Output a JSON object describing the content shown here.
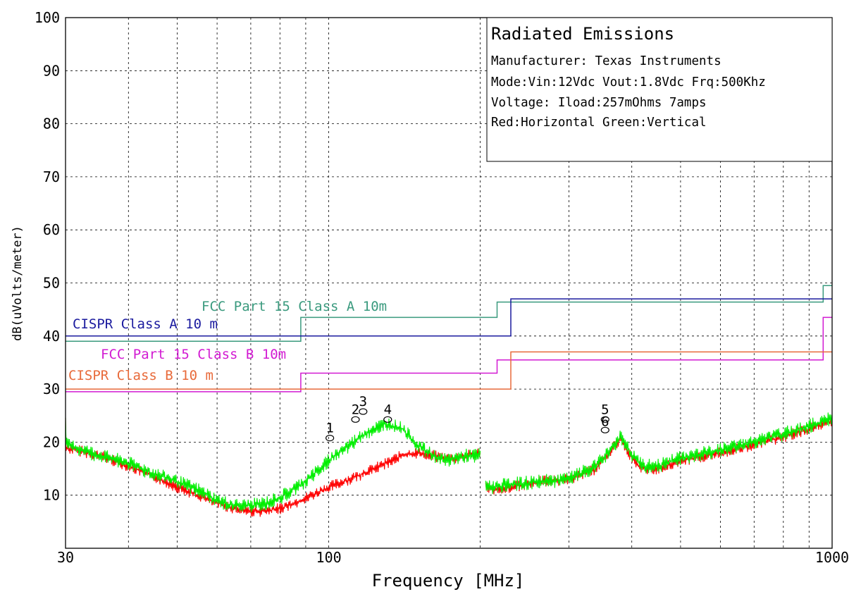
{
  "chart_data": {
    "type": "line",
    "title": "Radiated Emissions",
    "info_lines": [
      "Manufacturer: Texas Instruments",
      "Mode:Vin:12Vdc Vout:1.8Vdc Frq:500Khz",
      "Voltage: Iload:257mOhms 7amps",
      "Red:Horizontal Green:Vertical"
    ],
    "xlabel": "Frequency [MHz]",
    "ylabel": "dB(uVolts/meter)",
    "x_scale": "log",
    "xlim": [
      30,
      1000
    ],
    "ylim": [
      0,
      100
    ],
    "x_ticks": [
      30,
      100,
      1000
    ],
    "y_ticks": [
      10,
      20,
      30,
      40,
      50,
      60,
      70,
      80,
      90,
      100
    ],
    "grid": true,
    "limit_lines": [
      {
        "name": "FCC Part 15 Class A 10m",
        "color": "#3a9a7e",
        "points": [
          [
            30,
            39
          ],
          [
            88,
            39
          ],
          [
            88,
            43.5
          ],
          [
            216,
            43.5
          ],
          [
            216,
            46.4
          ],
          [
            960,
            46.4
          ],
          [
            960,
            49.5
          ],
          [
            1000,
            49.5
          ]
        ]
      },
      {
        "name": "CISPR Class A 10 m",
        "color": "#1a1a9e",
        "points": [
          [
            30,
            40
          ],
          [
            230,
            40
          ],
          [
            230,
            47
          ],
          [
            1000,
            47
          ]
        ]
      },
      {
        "name": "FCC Part 15  Class B 10m",
        "color": "#d21ad2",
        "points": [
          [
            30,
            29.5
          ],
          [
            88,
            29.5
          ],
          [
            88,
            33
          ],
          [
            216,
            33
          ],
          [
            216,
            35.5
          ],
          [
            960,
            35.5
          ],
          [
            960,
            43.5
          ],
          [
            1000,
            43.5
          ]
        ]
      },
      {
        "name": "CISPR Class B 10 m",
        "color": "#e86a3a",
        "points": [
          [
            30,
            30
          ],
          [
            230,
            30
          ],
          [
            230,
            37
          ],
          [
            1000,
            37
          ]
        ]
      }
    ],
    "series": [
      {
        "name": "Horizontal",
        "color": "#ff0000",
        "x": [
          30,
          35,
          40,
          45,
          50,
          55,
          60,
          65,
          70,
          75,
          80,
          88,
          95,
          100,
          110,
          120,
          130,
          140,
          150,
          160,
          170,
          180,
          190,
          200,
          205,
          210,
          230,
          260,
          300,
          340,
          370,
          380,
          400,
          420,
          450,
          500,
          600,
          700,
          800,
          900,
          1000
        ],
        "y": [
          19,
          17.5,
          15.5,
          13.5,
          11.5,
          10,
          8.5,
          7.5,
          7,
          7,
          7.5,
          9,
          10.5,
          11.5,
          13,
          14.5,
          16,
          17.5,
          18,
          17.5,
          17,
          17,
          17.5,
          18,
          11.5,
          11,
          11.5,
          12.5,
          13,
          15,
          19.5,
          20.5,
          17,
          15,
          15,
          16.5,
          18,
          19.5,
          21,
          22.5,
          24
        ]
      },
      {
        "name": "Vertical",
        "color": "#00ee00",
        "x": [
          30,
          35,
          40,
          45,
          50,
          55,
          60,
          65,
          70,
          75,
          80,
          88,
          95,
          100,
          110,
          120,
          130,
          140,
          150,
          160,
          170,
          180,
          190,
          200,
          205,
          210,
          230,
          260,
          300,
          340,
          370,
          380,
          400,
          420,
          450,
          500,
          600,
          700,
          800,
          900,
          1000
        ],
        "y": [
          19.5,
          17.5,
          16,
          14,
          12.5,
          11,
          9,
          8,
          8,
          8.5,
          9.5,
          12,
          14.5,
          16.5,
          19.5,
          22,
          23.5,
          22.5,
          19.5,
          17.5,
          16.5,
          17,
          17.5,
          17.5,
          12,
          11.5,
          12,
          12.5,
          13,
          15.5,
          19.5,
          21,
          17.5,
          15.5,
          15.5,
          17,
          18.5,
          20,
          21.5,
          23,
          24.5
        ]
      }
    ],
    "markers": [
      {
        "label": "1",
        "x": 100.5,
        "y": 20.5
      },
      {
        "label": "2",
        "x": 113,
        "y": 24
      },
      {
        "label": "3",
        "x": 117,
        "y": 25.5
      },
      {
        "label": "4",
        "x": 131,
        "y": 24
      },
      {
        "label": "5",
        "x": 354,
        "y": 24
      },
      {
        "label": "6",
        "x": 354,
        "y": 22
      }
    ]
  }
}
